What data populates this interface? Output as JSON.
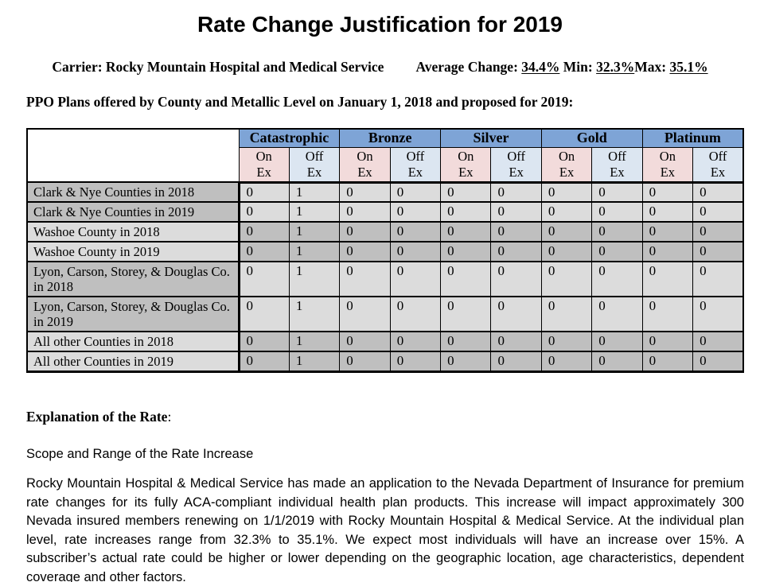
{
  "colors": {
    "page_bg": "#FFFFFF",
    "text_black": "#000000",
    "header_blue": "#7EA4D6",
    "on_ex_pink": "#F2DBDB",
    "off_ex_blue": "#DCE6F1",
    "gray_dark": "#BFBFBF",
    "gray_light": "#DCDCDC"
  },
  "title": "Rate Change Justification for 2019",
  "carrier_line": {
    "carrier": "Carrier: Rocky Mountain Hospital and Medical Service",
    "average_label": "Average Change: ",
    "average_value": "34.4%",
    "min_label": " Min: ",
    "min_value": "32.3%",
    "max_label": "Max: ",
    "max_value": "35.1%"
  },
  "table": {
    "caption": "PPO Plans offered by County and Metallic Level on January 1, 2018 and proposed for 2019:",
    "metal_levels": [
      "Catastrophic",
      "Bronze",
      "Silver",
      "Gold",
      "Platinum"
    ],
    "on_header": "On\nEx",
    "off_header": "Off\nEx",
    "rows": [
      {
        "label": "Clark & Nye Counties in 2018",
        "label_shade": "dark",
        "data_shade": "light",
        "values": [
          "0",
          "1",
          "0",
          "0",
          "0",
          "0",
          "0",
          "0",
          "0",
          "0"
        ]
      },
      {
        "label": "Clark & Nye Counties in 2019",
        "label_shade": "dark",
        "data_shade": "light",
        "values": [
          "0",
          "1",
          "0",
          "0",
          "0",
          "0",
          "0",
          "0",
          "0",
          "0"
        ]
      },
      {
        "label": "Washoe County in 2018",
        "label_shade": "light",
        "data_shade": "dark",
        "values": [
          "0",
          "1",
          "0",
          "0",
          "0",
          "0",
          "0",
          "0",
          "0",
          "0"
        ]
      },
      {
        "label": "Washoe County in 2019",
        "label_shade": "light",
        "data_shade": "dark",
        "values": [
          "0",
          "1",
          "0",
          "0",
          "0",
          "0",
          "0",
          "0",
          "0",
          "0"
        ]
      },
      {
        "label": "Lyon, Carson, Storey, & Douglas Co. in 2018",
        "label_shade": "dark",
        "data_shade": "light",
        "values": [
          "0",
          "1",
          "0",
          "0",
          "0",
          "0",
          "0",
          "0",
          "0",
          "0"
        ]
      },
      {
        "label": "Lyon, Carson, Storey, & Douglas Co. in 2019",
        "label_shade": "dark",
        "data_shade": "light",
        "values": [
          "0",
          "1",
          "0",
          "0",
          "0",
          "0",
          "0",
          "0",
          "0",
          "0"
        ]
      },
      {
        "label": "All other Counties in 2018",
        "label_shade": "light",
        "data_shade": "dark",
        "values": [
          "0",
          "1",
          "0",
          "0",
          "0",
          "0",
          "0",
          "0",
          "0",
          "0"
        ]
      },
      {
        "label": "All other Counties in 2019",
        "label_shade": "light",
        "data_shade": "dark",
        "values": [
          "0",
          "1",
          "0",
          "0",
          "0",
          "0",
          "0",
          "0",
          "0",
          "0"
        ]
      }
    ]
  },
  "explanation": {
    "heading": "Explanation of the Rate",
    "heading_colon": ":",
    "subheading": "Scope and Range of the Rate Increase",
    "paragraph": "Rocky Mountain Hospital & Medical Service has made an application to the Nevada Department of Insurance for premium rate changes for its fully ACA-compliant individual health plan products. This increase will impact approximately 300 Nevada insured members renewing on 1/1/2019 with Rocky Mountain Hospital & Medical Service.  At the individual plan level, rate increases range from 32.3% to 35.1%.  We expect most individuals will have an increase over 15%.  A subscriber’s actual rate could be higher or lower depending on the geographic location, age characteristics, dependent coverage and other factors."
  }
}
